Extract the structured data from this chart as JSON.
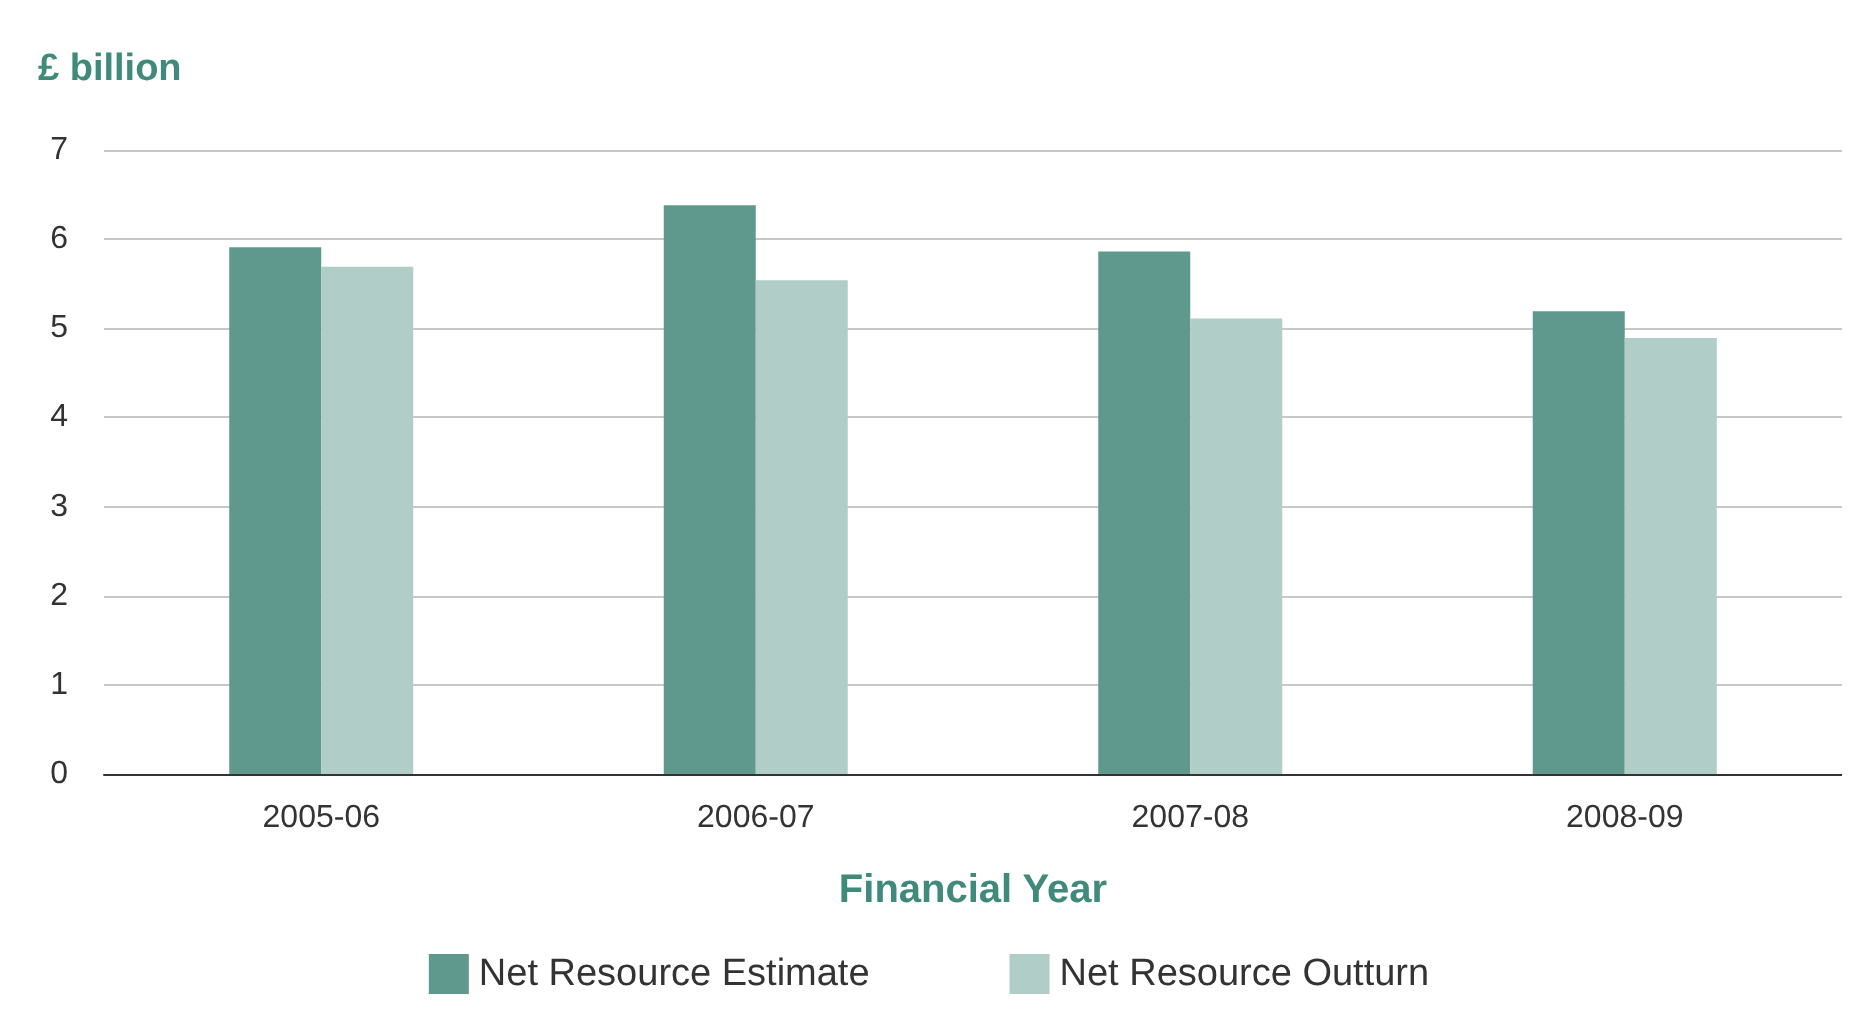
{
  "chart_data": {
    "type": "bar",
    "ylabel": "£ billion",
    "xlabel": "Financial Year",
    "categories": [
      "2005-06",
      "2006-07",
      "2007-08",
      "2008-09"
    ],
    "series": [
      {
        "name": "Net Resource Estimate",
        "color": "#5f998e",
        "values": [
          5.91,
          6.38,
          5.86,
          5.19
        ]
      },
      {
        "name": "Net Resource Outturn",
        "color": "#b1cdc8",
        "values": [
          5.69,
          5.54,
          5.11,
          4.89
        ]
      }
    ],
    "ylim": [
      0,
      7
    ],
    "yticks": [
      0,
      1,
      2,
      3,
      4,
      5,
      6,
      7
    ],
    "grid": "y",
    "legend": "bottom"
  }
}
